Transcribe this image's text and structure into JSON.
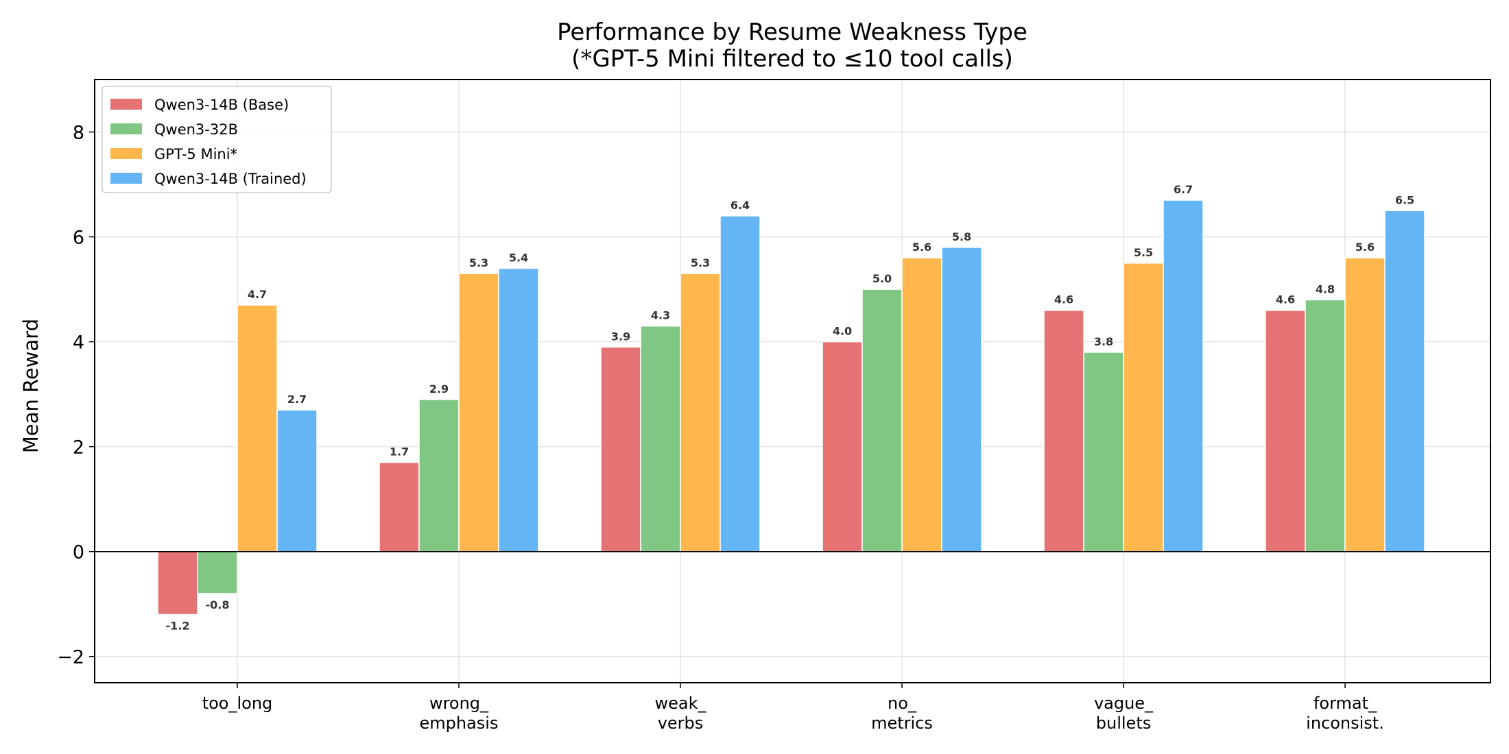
{
  "chart_data": {
    "type": "bar",
    "title": "Performance by Resume Weakness Type",
    "subtitle": "(*GPT-5 Mini filtered to ≤10 tool calls)",
    "xlabel": "",
    "ylabel": "Mean Reward",
    "ylim": [
      -2.5,
      9
    ],
    "yticks": [
      -2,
      0,
      2,
      4,
      6,
      8
    ],
    "ytick_labels": [
      "−2",
      "0",
      "2",
      "4",
      "6",
      "8"
    ],
    "grid": true,
    "legend_position": "top-left",
    "categories": [
      [
        "too_long"
      ],
      [
        "wrong_",
        "emphasis"
      ],
      [
        "weak_",
        "verbs"
      ],
      [
        "no_",
        "metrics"
      ],
      [
        "vague_",
        "bullets"
      ],
      [
        "format_",
        "inconsist."
      ]
    ],
    "series": [
      {
        "name": "Qwen3-14B (Base)",
        "color": "#e57373",
        "values": [
          -1.2,
          1.7,
          3.9,
          4.0,
          4.6,
          4.6
        ],
        "labels": [
          "-1.2",
          "1.7",
          "3.9",
          "4.0",
          "4.6",
          "4.6"
        ]
      },
      {
        "name": "Qwen3-32B",
        "color": "#81c784",
        "values": [
          -0.8,
          2.9,
          4.3,
          5.0,
          3.8,
          4.8
        ],
        "labels": [
          "-0.8",
          "2.9",
          "4.3",
          "5.0",
          "3.8",
          "4.8"
        ]
      },
      {
        "name": "GPT-5 Mini*",
        "color": "#ffb74d",
        "values": [
          4.7,
          5.3,
          5.3,
          5.6,
          5.5,
          5.6
        ],
        "labels": [
          "4.7",
          "5.3",
          "5.3",
          "5.6",
          "5.5",
          "5.6"
        ]
      },
      {
        "name": "Qwen3-14B (Trained)",
        "color": "#64b5f6",
        "values": [
          2.7,
          5.4,
          6.4,
          5.8,
          6.7,
          6.5
        ],
        "labels": [
          "2.7",
          "5.4",
          "6.4",
          "5.8",
          "6.7",
          "6.5"
        ]
      }
    ]
  }
}
